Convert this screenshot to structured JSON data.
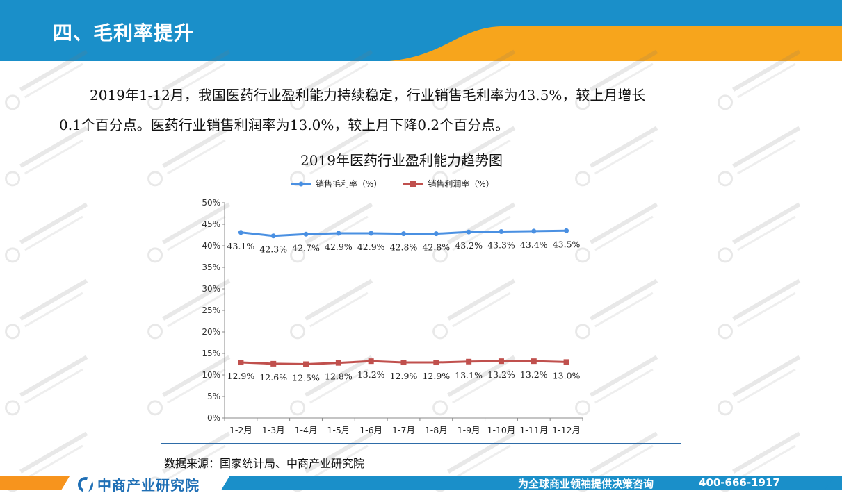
{
  "header": {
    "title": "四、毛利率提升"
  },
  "intro": {
    "line1": "2019年1-12月，我国医药行业盈利能力持续稳定，行业销售毛利率为43.5%，较上月增长",
    "line2": "0.1个百分点。医药行业销售利润率为13.0%，较上月下降0.2个百分点。"
  },
  "colors": {
    "header_blue": "#1a8fc9",
    "header_orange": "#f7a51c",
    "series_gross": "#4a90e2",
    "series_profit": "#c0504d",
    "footer_orange": "#f7941d",
    "footer_blue": "#1a8fc9"
  },
  "chart_data": {
    "type": "line",
    "title": "2019年医药行业盈利能力趋势图",
    "categories": [
      "1-2月",
      "1-3月",
      "1-4月",
      "1-5月",
      "1-6月",
      "1-7月",
      "1-8月",
      "1-9月",
      "1-10月",
      "1-11月",
      "1-12月"
    ],
    "series": [
      {
        "name": "销售毛利率（%）",
        "values": [
          43.1,
          42.3,
          42.7,
          42.9,
          42.9,
          42.8,
          42.8,
          43.2,
          43.3,
          43.4,
          43.5
        ],
        "labels": [
          "43.1%",
          "42.3%",
          "42.7%",
          "42.9%",
          "42.9%",
          "42.8%",
          "42.8%",
          "43.2%",
          "43.3%",
          "43.4%",
          "43.5%"
        ]
      },
      {
        "name": "销售利润率（%）",
        "values": [
          12.9,
          12.6,
          12.5,
          12.8,
          13.2,
          12.9,
          12.9,
          13.1,
          13.2,
          13.2,
          13.0
        ],
        "labels": [
          "12.9%",
          "12.6%",
          "12.5%",
          "12.8%",
          "13.2%",
          "12.9%",
          "12.9%",
          "13.1%",
          "13.2%",
          "13.2%",
          "13.0%"
        ]
      }
    ],
    "ylim": [
      0,
      50
    ],
    "yticks": [
      "0%",
      "5%",
      "10%",
      "15%",
      "20%",
      "25%",
      "30%",
      "35%",
      "40%",
      "45%",
      "50%"
    ],
    "grid": false,
    "legend_position": "top"
  },
  "source": {
    "text": "数据来源：国家统计局、中商产业研究院"
  },
  "footer": {
    "logo_text": "中商产业研究院",
    "slogan": "为全球商业领袖提供决策咨询",
    "phone": "400-666-1917"
  }
}
